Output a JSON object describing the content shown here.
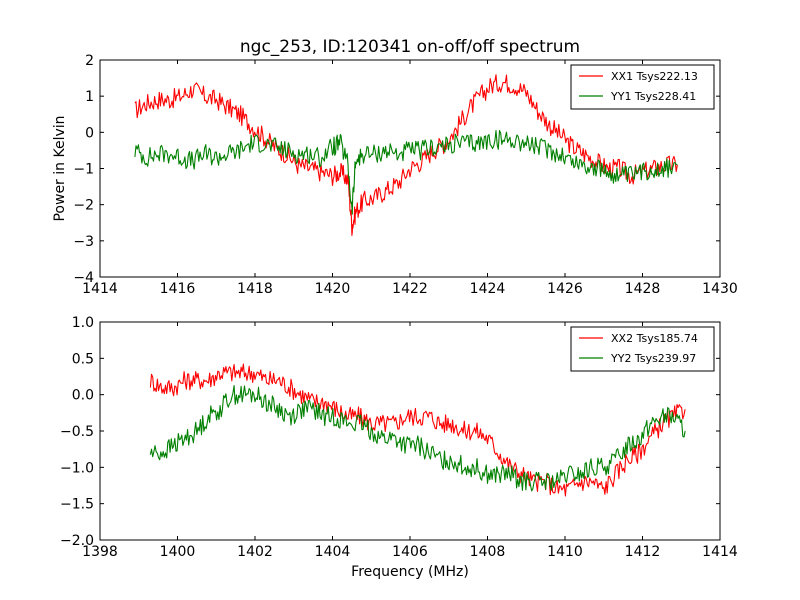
{
  "chart_data": [
    {
      "type": "line",
      "title": "ngc_253, ID:120341 on-off/off spectrum",
      "xlabel": "",
      "ylabel": "Power in Kelvin",
      "xlim": [
        1414,
        1430
      ],
      "ylim": [
        -4,
        2
      ],
      "xticks": [
        "1414",
        "1416",
        "1418",
        "1420",
        "1422",
        "1424",
        "1426",
        "1428",
        "1430"
      ],
      "yticks": [
        "2",
        "1",
        "0",
        "−1",
        "−2",
        "−3",
        "−4"
      ],
      "legend_position": "top-right",
      "series": [
        {
          "name": "XX1 Tsys222.13",
          "color": "#ff0000",
          "x": [
            1414.9,
            1415.2,
            1415.5,
            1415.8,
            1416.1,
            1416.4,
            1416.7,
            1417.0,
            1417.3,
            1417.6,
            1417.9,
            1418.2,
            1418.5,
            1418.8,
            1419.1,
            1419.4,
            1419.7,
            1420.0,
            1420.2,
            1420.4,
            1420.5,
            1420.6,
            1420.8,
            1421.1,
            1421.4,
            1421.7,
            1422.0,
            1422.3,
            1422.6,
            1422.9,
            1423.2,
            1423.5,
            1423.8,
            1424.1,
            1424.4,
            1424.7,
            1425.0,
            1425.3,
            1425.6,
            1425.9,
            1426.2,
            1426.5,
            1426.8,
            1427.1,
            1427.4,
            1427.7,
            1428.0,
            1428.3,
            1428.6,
            1428.9
          ],
          "values": [
            0.6,
            0.8,
            0.9,
            0.9,
            1.0,
            1.2,
            1.0,
            0.9,
            0.7,
            0.5,
            0.2,
            -0.1,
            -0.4,
            -0.6,
            -0.9,
            -1.0,
            -1.1,
            -1.2,
            -1.1,
            -1.3,
            -2.6,
            -2.2,
            -1.9,
            -1.8,
            -1.6,
            -1.4,
            -1.0,
            -0.8,
            -0.5,
            -0.3,
            0.1,
            0.6,
            1.0,
            1.3,
            1.4,
            1.3,
            1.1,
            0.6,
            0.2,
            -0.1,
            -0.4,
            -0.6,
            -0.8,
            -1.0,
            -1.0,
            -1.2,
            -1.1,
            -1.0,
            -0.9,
            -0.9
          ]
        },
        {
          "name": "YY1 Tsys228.41",
          "color": "#008000",
          "x": [
            1414.9,
            1415.2,
            1415.5,
            1415.8,
            1416.1,
            1416.4,
            1416.7,
            1417.0,
            1417.3,
            1417.6,
            1417.9,
            1418.2,
            1418.5,
            1418.8,
            1419.1,
            1419.4,
            1419.7,
            1420.0,
            1420.2,
            1420.4,
            1420.5,
            1420.6,
            1420.8,
            1421.1,
            1421.4,
            1421.7,
            1422.0,
            1422.3,
            1422.6,
            1422.9,
            1423.2,
            1423.5,
            1423.8,
            1424.1,
            1424.4,
            1424.7,
            1425.0,
            1425.3,
            1425.6,
            1425.9,
            1426.2,
            1426.5,
            1426.8,
            1427.1,
            1427.4,
            1427.7,
            1428.0,
            1428.3,
            1428.6,
            1428.9
          ],
          "values": [
            -0.5,
            -0.7,
            -0.6,
            -0.6,
            -0.7,
            -0.8,
            -0.6,
            -0.7,
            -0.6,
            -0.5,
            -0.3,
            -0.3,
            -0.4,
            -0.5,
            -0.6,
            -0.6,
            -0.7,
            -0.4,
            -0.3,
            -0.9,
            -2.2,
            -0.8,
            -0.6,
            -0.6,
            -0.5,
            -0.6,
            -0.5,
            -0.5,
            -0.4,
            -0.4,
            -0.3,
            -0.3,
            -0.3,
            -0.2,
            -0.2,
            -0.2,
            -0.3,
            -0.4,
            -0.5,
            -0.6,
            -0.8,
            -0.9,
            -1.0,
            -1.1,
            -1.2,
            -1.2,
            -1.1,
            -1.0,
            -1.0,
            -0.9
          ]
        }
      ]
    },
    {
      "type": "line",
      "title": "",
      "xlabel": "Frequency (MHz)",
      "ylabel": "",
      "xlim": [
        1398,
        1414
      ],
      "ylim": [
        -2.0,
        1.0
      ],
      "xticks": [
        "1398",
        "1400",
        "1402",
        "1404",
        "1406",
        "1408",
        "1410",
        "1412",
        "1414"
      ],
      "yticks": [
        "1.0",
        "0.5",
        "0.0",
        "−0.5",
        "−1.0",
        "−1.5",
        "−2.0"
      ],
      "legend_position": "top-right",
      "series": [
        {
          "name": "XX2 Tsys185.74",
          "color": "#ff0000",
          "x": [
            1399.3,
            1399.6,
            1399.9,
            1400.2,
            1400.5,
            1400.8,
            1401.1,
            1401.4,
            1401.7,
            1402.0,
            1402.3,
            1402.6,
            1402.9,
            1403.2,
            1403.5,
            1403.8,
            1404.1,
            1404.4,
            1404.7,
            1405.0,
            1405.3,
            1405.6,
            1405.9,
            1406.2,
            1406.5,
            1406.8,
            1407.1,
            1407.4,
            1407.7,
            1408.0,
            1408.3,
            1408.6,
            1408.9,
            1409.2,
            1409.5,
            1409.8,
            1410.1,
            1410.4,
            1410.7,
            1411.0,
            1411.3,
            1411.6,
            1411.9,
            1412.2,
            1412.5,
            1412.8,
            1413.1
          ],
          "values": [
            0.2,
            0.1,
            0.1,
            0.2,
            0.2,
            0.2,
            0.3,
            0.3,
            0.3,
            0.3,
            0.2,
            0.2,
            0.1,
            0.0,
            -0.1,
            -0.1,
            -0.2,
            -0.3,
            -0.3,
            -0.4,
            -0.4,
            -0.4,
            -0.3,
            -0.3,
            -0.3,
            -0.4,
            -0.4,
            -0.5,
            -0.5,
            -0.6,
            -0.8,
            -1.0,
            -1.1,
            -1.2,
            -1.2,
            -1.3,
            -1.3,
            -1.2,
            -1.2,
            -1.3,
            -1.1,
            -0.9,
            -0.8,
            -0.6,
            -0.4,
            -0.3,
            -0.2
          ]
        },
        {
          "name": "YY2 Tsys239.97",
          "color": "#008000",
          "x": [
            1399.3,
            1399.6,
            1399.9,
            1400.2,
            1400.5,
            1400.8,
            1401.1,
            1401.4,
            1401.7,
            1402.0,
            1402.3,
            1402.6,
            1402.9,
            1403.2,
            1403.5,
            1403.8,
            1404.1,
            1404.4,
            1404.7,
            1405.0,
            1405.3,
            1405.6,
            1405.9,
            1406.2,
            1406.5,
            1406.8,
            1407.1,
            1407.4,
            1407.7,
            1408.0,
            1408.3,
            1408.6,
            1408.9,
            1409.2,
            1409.5,
            1409.8,
            1410.1,
            1410.4,
            1410.7,
            1411.0,
            1411.3,
            1411.6,
            1411.9,
            1412.2,
            1412.5,
            1412.8,
            1413.1
          ],
          "values": [
            -0.8,
            -0.8,
            -0.7,
            -0.6,
            -0.5,
            -0.3,
            -0.2,
            0.0,
            0.0,
            0.0,
            -0.1,
            -0.2,
            -0.3,
            -0.2,
            -0.2,
            -0.3,
            -0.3,
            -0.4,
            -0.4,
            -0.5,
            -0.6,
            -0.6,
            -0.7,
            -0.7,
            -0.8,
            -0.9,
            -0.9,
            -1.0,
            -1.0,
            -1.1,
            -1.1,
            -1.1,
            -1.2,
            -1.2,
            -1.2,
            -1.2,
            -1.1,
            -1.1,
            -1.0,
            -1.0,
            -0.9,
            -0.7,
            -0.6,
            -0.4,
            -0.3,
            -0.3,
            -0.5
          ]
        }
      ]
    }
  ]
}
